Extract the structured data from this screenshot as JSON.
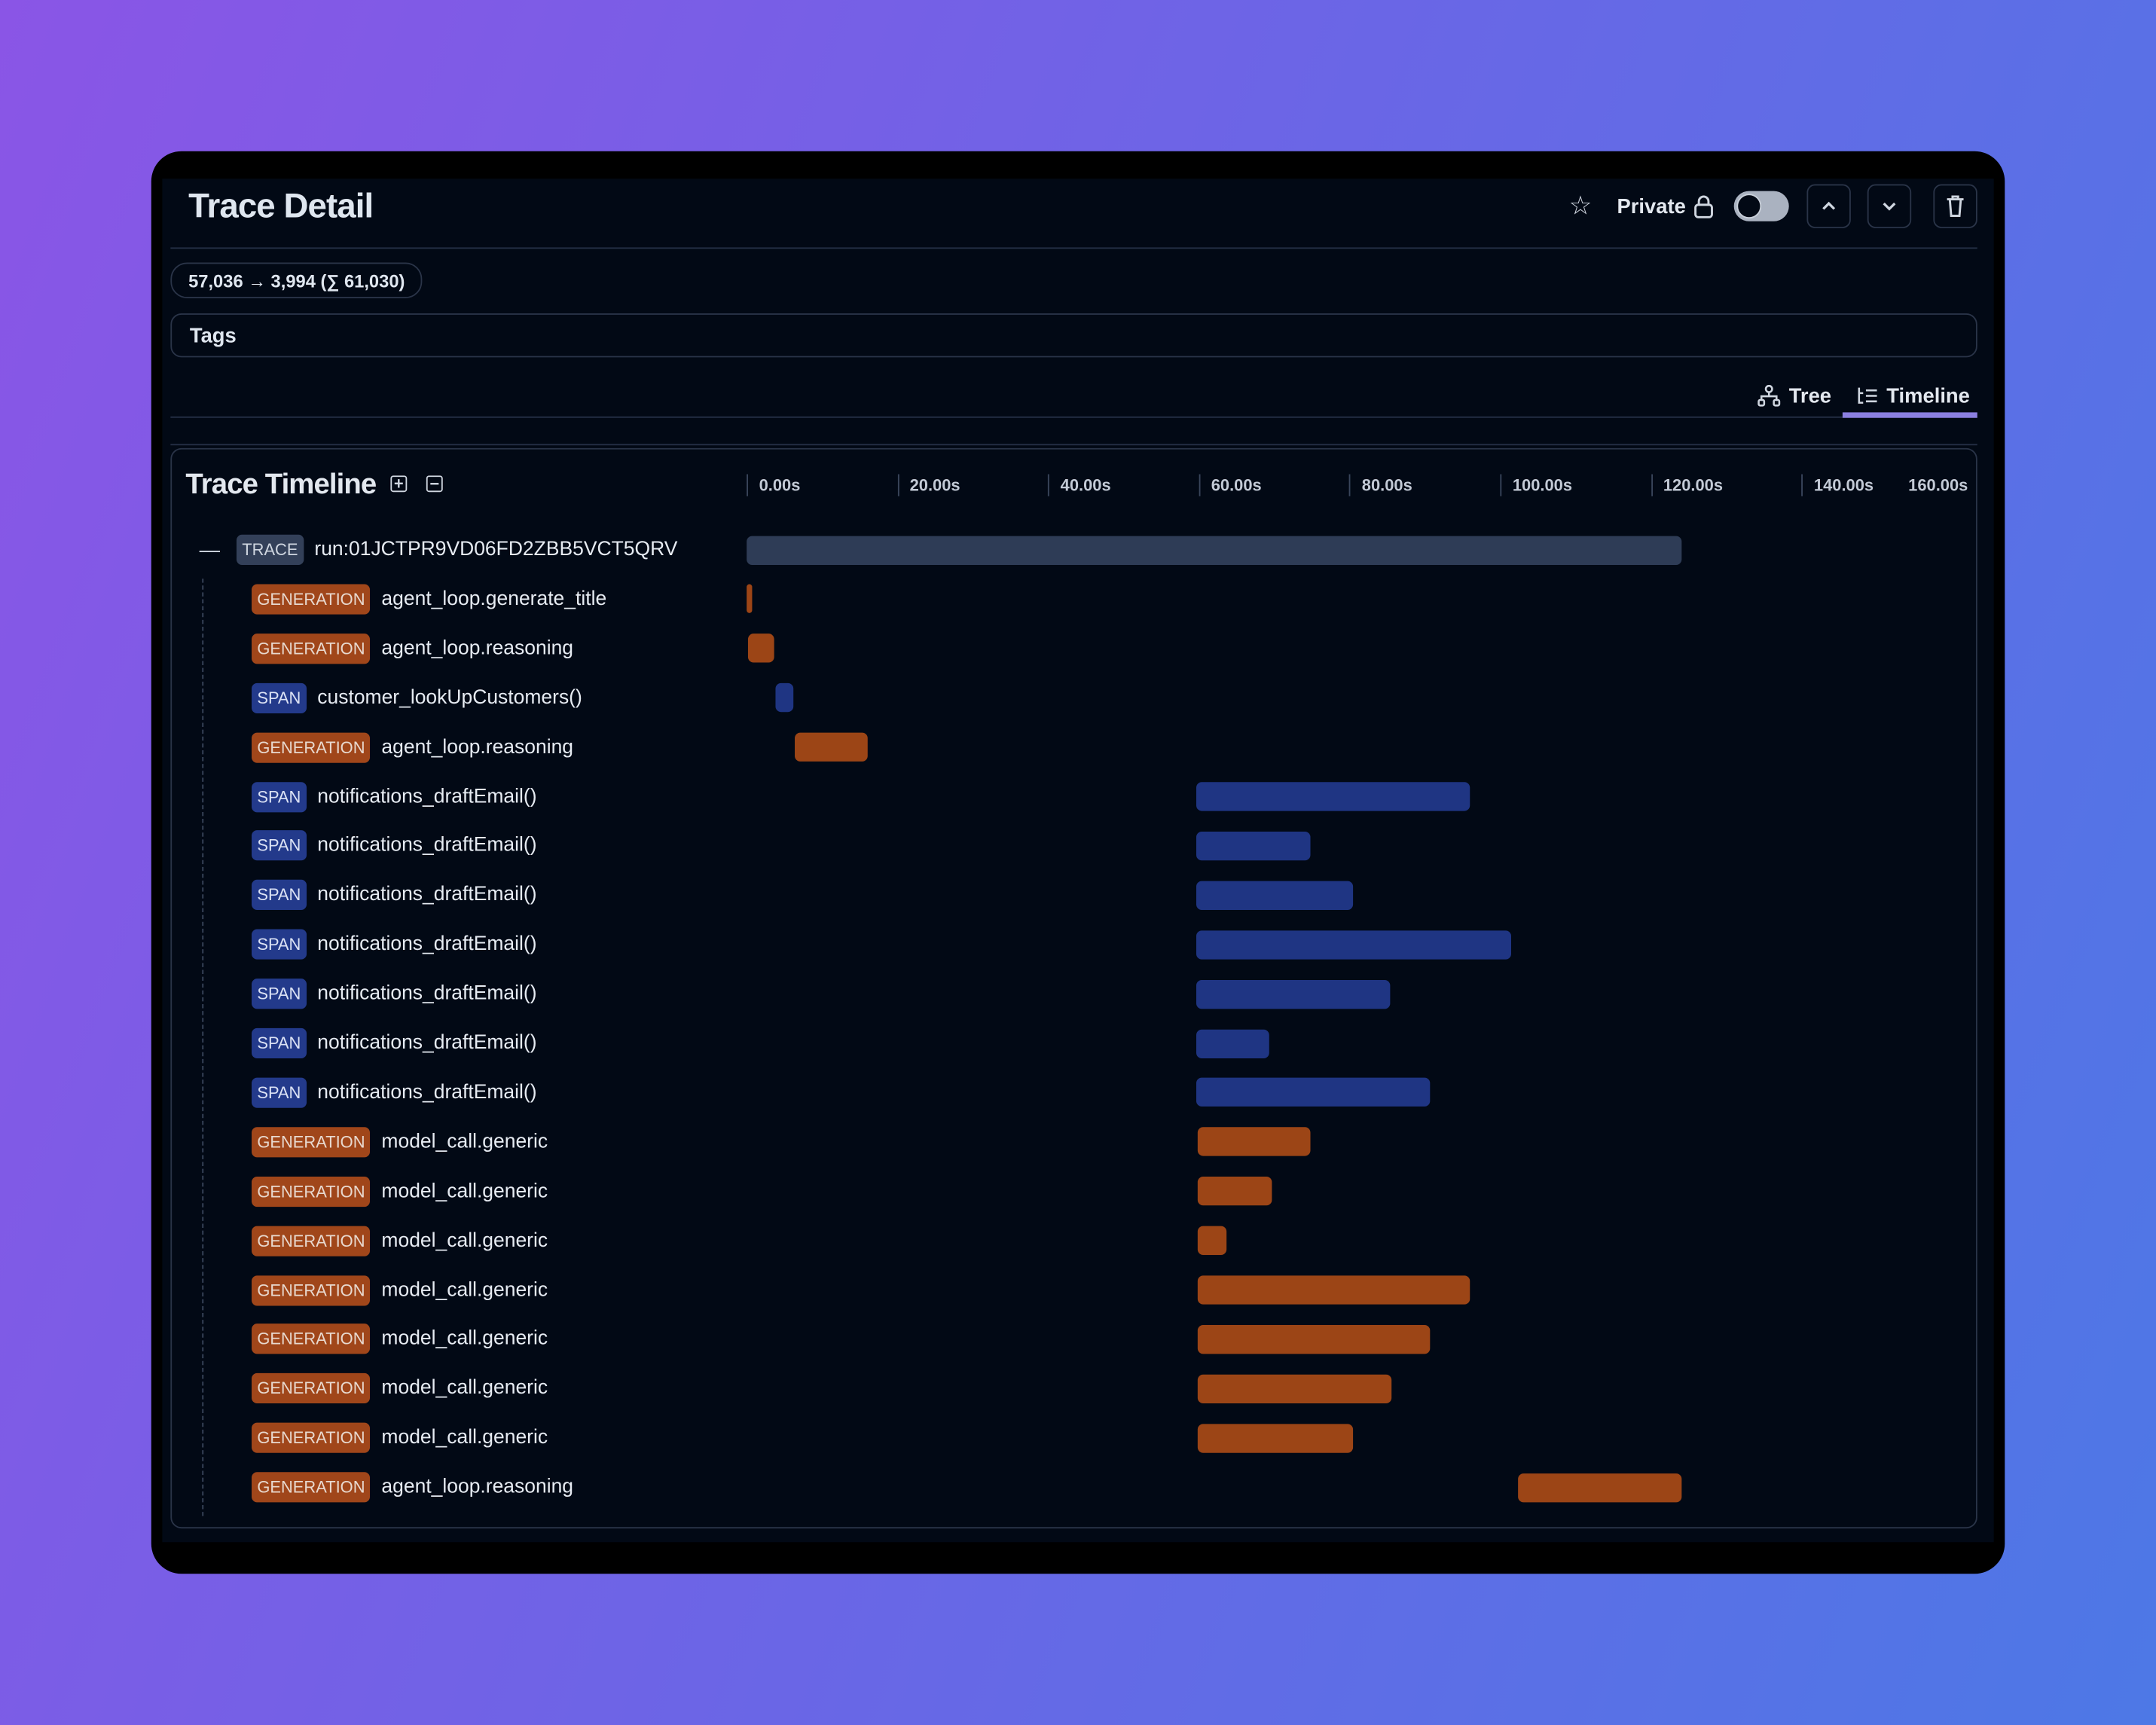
{
  "header": {
    "title": "Trace Detail",
    "private_label": "Private",
    "private_enabled": false,
    "icons": [
      "star-icon",
      "lock-icon",
      "chevron-up-icon",
      "chevron-down-icon",
      "trash-icon"
    ]
  },
  "usage_pill": "57,036 → 3,994 (∑ 61,030)",
  "tags_label": "Tags",
  "view_tabs": [
    {
      "label": "Tree",
      "icon": "tree-icon",
      "active": false
    },
    {
      "label": "Timeline",
      "icon": "timeline-icon",
      "active": true
    }
  ],
  "timeline": {
    "title": "Trace Timeline",
    "ticks": [
      "0.00s",
      "20.00s",
      "40.00s",
      "60.00s",
      "80.00s",
      "100.00s",
      "120.00s",
      "140.00s",
      "160.00s"
    ],
    "colors": {
      "GENERATION": "#9c4516",
      "SPAN": "#1f3583",
      "TRACE": "#2e3c56",
      "accent": "#8b7fe0"
    },
    "rows": [
      {
        "type": "TRACE",
        "name": "run:01JCTPR9VD06FD2ZBB5VCT5QRV",
        "start": 0,
        "end": 124
      },
      {
        "type": "GENERATION",
        "name": "agent_loop.generate_title",
        "start": 0,
        "end": 0.7
      },
      {
        "type": "GENERATION",
        "name": "agent_loop.reasoning",
        "start": 0.2,
        "end": 3.6
      },
      {
        "type": "SPAN",
        "name": "customer_lookUpCustomers()",
        "start": 3.8,
        "end": 6.2
      },
      {
        "type": "GENERATION",
        "name": "agent_loop.reasoning",
        "start": 6.4,
        "end": 16.1
      },
      {
        "type": "SPAN",
        "name": "notifications_draftEmail()",
        "start": 59.7,
        "end": 96.0
      },
      {
        "type": "SPAN",
        "name": "notifications_draftEmail()",
        "start": 59.7,
        "end": 74.8
      },
      {
        "type": "SPAN",
        "name": "notifications_draftEmail()",
        "start": 59.7,
        "end": 80.5
      },
      {
        "type": "SPAN",
        "name": "notifications_draftEmail()",
        "start": 59.7,
        "end": 101.5
      },
      {
        "type": "SPAN",
        "name": "notifications_draftEmail()",
        "start": 59.7,
        "end": 85.4
      },
      {
        "type": "SPAN",
        "name": "notifications_draftEmail()",
        "start": 59.7,
        "end": 69.3
      },
      {
        "type": "SPAN",
        "name": "notifications_draftEmail()",
        "start": 59.7,
        "end": 90.7
      },
      {
        "type": "GENERATION",
        "name": "model_call.generic",
        "start": 59.9,
        "end": 74.8
      },
      {
        "type": "GENERATION",
        "name": "model_call.generic",
        "start": 59.9,
        "end": 69.7
      },
      {
        "type": "GENERATION",
        "name": "model_call.generic",
        "start": 59.9,
        "end": 63.7
      },
      {
        "type": "GENERATION",
        "name": "model_call.generic",
        "start": 59.9,
        "end": 96.0
      },
      {
        "type": "GENERATION",
        "name": "model_call.generic",
        "start": 59.9,
        "end": 90.7
      },
      {
        "type": "GENERATION",
        "name": "model_call.generic",
        "start": 59.9,
        "end": 85.6
      },
      {
        "type": "GENERATION",
        "name": "model_call.generic",
        "start": 59.9,
        "end": 80.5
      },
      {
        "type": "GENERATION",
        "name": "agent_loop.reasoning",
        "start": 102.4,
        "end": 124
      }
    ]
  }
}
